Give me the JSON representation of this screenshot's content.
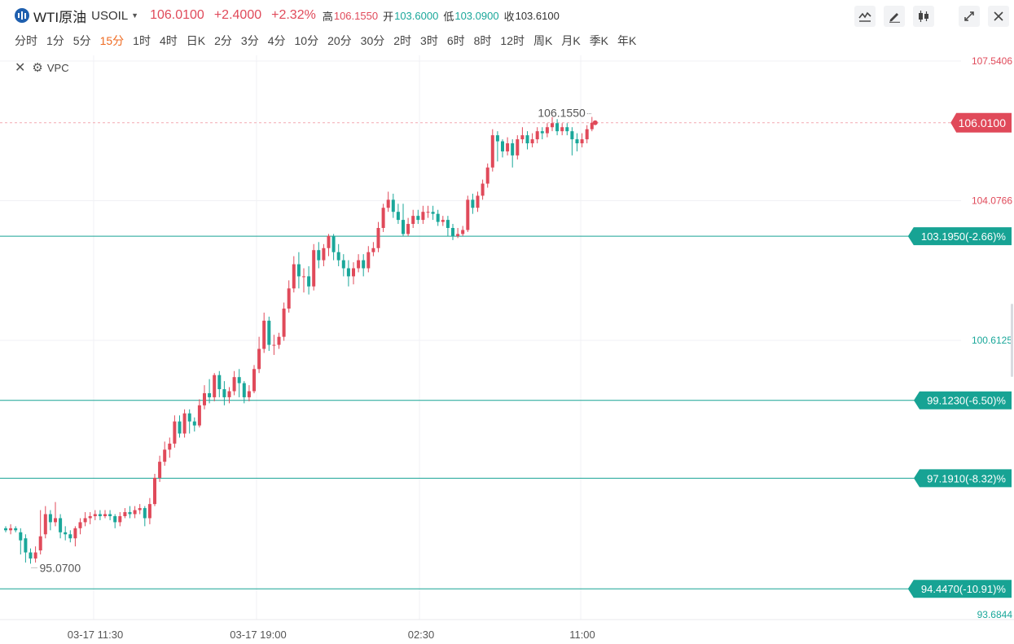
{
  "header": {
    "symbol_name": "WTI原油",
    "symbol_code": "USOIL",
    "price": "106.0100",
    "change": "+2.4000",
    "change_pct": "+2.32%",
    "high_label": "高",
    "high": "106.1550",
    "open_label": "开",
    "open": "103.6000",
    "low_label": "低",
    "low": "103.0900",
    "close_label": "收",
    "close": "103.6100"
  },
  "toolbar": {
    "icons": [
      "indicator-icon",
      "draw-icon",
      "candle-type-icon",
      "fullscreen-icon",
      "close-icon"
    ]
  },
  "periods": [
    "分时",
    "1分",
    "5分",
    "15分",
    "1时",
    "4时",
    "日K",
    "2分",
    "3分",
    "4分",
    "10分",
    "20分",
    "30分",
    "2时",
    "3时",
    "6时",
    "8时",
    "12时",
    "周K",
    "月K",
    "季K",
    "年K"
  ],
  "active_period": "15分",
  "indicator": {
    "label": "VPC"
  },
  "colors": {
    "up": "#e04a5a",
    "down": "#1aa79a",
    "accent": "#ef6a20",
    "level_line": "#17a394"
  },
  "chart_data": {
    "type": "candlestick",
    "y_axis_labels": [
      "107.5406",
      "104.0766",
      "100.6125",
      "93.6844"
    ],
    "ylim": [
      93.6844,
      107.5406
    ],
    "x_ticks": [
      "03-17 11:30",
      "03-17 19:00",
      "02:30",
      "11:00"
    ],
    "high_marker": "106.1550",
    "low_marker": "95.0700",
    "last_price": {
      "value": 106.01,
      "label": "106.0100"
    },
    "levels": [
      {
        "value": 103.195,
        "label": "103.1950(-2.66)%"
      },
      {
        "value": 99.123,
        "label": "99.1230(-6.50)%"
      },
      {
        "value": 97.191,
        "label": "97.1910(-8.32)%"
      },
      {
        "value": 94.447,
        "label": "94.4470(-10.91)%"
      }
    ],
    "candles": [
      [
        95.95,
        95.9,
        96.0,
        95.85
      ],
      [
        95.9,
        95.95,
        96.05,
        95.8
      ],
      [
        95.95,
        95.9,
        96.0,
        95.85
      ],
      [
        95.85,
        95.65,
        95.95,
        95.3
      ],
      [
        95.7,
        95.35,
        95.8,
        95.1
      ],
      [
        95.35,
        95.2,
        95.45,
        95.07
      ],
      [
        95.2,
        95.35,
        95.5,
        95.1
      ],
      [
        95.4,
        95.75,
        96.4,
        95.3
      ],
      [
        95.8,
        96.3,
        96.5,
        95.7
      ],
      [
        96.3,
        96.1,
        96.4,
        95.9
      ],
      [
        96.1,
        96.2,
        96.6,
        96.0
      ],
      [
        96.2,
        95.85,
        96.3,
        95.7
      ],
      [
        95.85,
        95.8,
        96.0,
        95.65
      ],
      [
        95.8,
        95.7,
        95.9,
        95.6
      ],
      [
        95.7,
        95.95,
        96.0,
        95.5
      ],
      [
        95.95,
        96.1,
        96.2,
        95.8
      ],
      [
        96.1,
        96.2,
        96.35,
        96.0
      ],
      [
        96.2,
        96.25,
        96.35,
        96.05
      ],
      [
        96.25,
        96.3,
        96.4,
        96.15
      ],
      [
        96.3,
        96.25,
        96.4,
        96.15
      ],
      [
        96.25,
        96.3,
        96.4,
        96.2
      ],
      [
        96.3,
        96.25,
        96.4,
        96.15
      ],
      [
        96.25,
        96.1,
        96.3,
        95.95
      ],
      [
        96.1,
        96.25,
        96.35,
        96.0
      ],
      [
        96.25,
        96.35,
        96.45,
        96.2
      ],
      [
        96.35,
        96.3,
        96.5,
        96.2
      ],
      [
        96.3,
        96.4,
        96.5,
        96.2
      ],
      [
        96.4,
        96.45,
        96.55,
        96.3
      ],
      [
        96.45,
        96.2,
        96.5,
        96.0
      ],
      [
        96.2,
        96.55,
        96.7,
        96.05
      ],
      [
        96.55,
        97.2,
        97.3,
        96.5
      ],
      [
        97.2,
        97.6,
        97.75,
        97.1
      ],
      [
        97.6,
        97.9,
        98.1,
        97.5
      ],
      [
        97.9,
        98.05,
        98.2,
        97.7
      ],
      [
        98.05,
        98.6,
        98.75,
        97.95
      ],
      [
        98.6,
        98.3,
        98.75,
        98.2
      ],
      [
        98.3,
        98.8,
        98.9,
        98.2
      ],
      [
        98.8,
        98.6,
        98.9,
        98.3
      ],
      [
        98.6,
        98.5,
        98.7,
        98.35
      ],
      [
        98.5,
        99.0,
        99.15,
        98.45
      ],
      [
        99.0,
        99.3,
        99.5,
        98.9
      ],
      [
        99.3,
        99.2,
        99.65,
        99.05
      ],
      [
        99.2,
        99.75,
        99.8,
        99.1
      ],
      [
        99.75,
        99.4,
        99.85,
        99.2
      ],
      [
        99.4,
        99.2,
        99.6,
        99.0
      ],
      [
        99.2,
        99.35,
        99.45,
        99.05
      ],
      [
        99.35,
        99.7,
        99.85,
        99.25
      ],
      [
        99.7,
        99.55,
        99.9,
        99.2
      ],
      [
        99.55,
        99.2,
        99.6,
        99.05
      ],
      [
        99.2,
        99.35,
        99.5,
        99.1
      ],
      [
        99.35,
        99.9,
        100.0,
        99.3
      ],
      [
        99.9,
        100.4,
        100.7,
        99.8
      ],
      [
        100.4,
        101.1,
        101.3,
        100.3
      ],
      [
        101.1,
        100.5,
        101.2,
        100.35
      ],
      [
        100.5,
        100.5,
        100.75,
        100.25
      ],
      [
        100.5,
        100.7,
        100.8,
        100.4
      ],
      [
        100.7,
        101.4,
        101.55,
        100.6
      ],
      [
        101.4,
        101.9,
        102.1,
        101.3
      ],
      [
        101.9,
        102.5,
        102.7,
        101.8
      ],
      [
        102.5,
        102.2,
        102.8,
        101.9
      ],
      [
        102.2,
        102.2,
        102.4,
        101.8
      ],
      [
        102.2,
        101.95,
        102.45,
        101.75
      ],
      [
        101.95,
        102.85,
        103.0,
        101.85
      ],
      [
        102.85,
        102.6,
        103.05,
        102.4
      ],
      [
        102.6,
        102.9,
        103.0,
        102.45
      ],
      [
        102.9,
        103.2,
        103.25,
        102.7
      ],
      [
        103.2,
        102.8,
        103.25,
        102.6
      ],
      [
        102.8,
        102.6,
        103.0,
        102.45
      ],
      [
        102.6,
        102.4,
        102.75,
        102.2
      ],
      [
        102.4,
        102.2,
        102.6,
        101.95
      ],
      [
        102.2,
        102.4,
        102.55,
        102.0
      ],
      [
        102.4,
        102.6,
        102.75,
        102.3
      ],
      [
        102.6,
        102.4,
        102.75,
        102.2
      ],
      [
        102.4,
        102.8,
        102.95,
        102.3
      ],
      [
        102.8,
        102.9,
        103.05,
        102.7
      ],
      [
        102.9,
        103.4,
        103.55,
        102.8
      ],
      [
        103.4,
        103.9,
        104.0,
        103.3
      ],
      [
        103.9,
        104.1,
        104.3,
        103.8
      ],
      [
        104.1,
        103.8,
        104.25,
        103.65
      ],
      [
        103.8,
        103.6,
        104.0,
        103.5
      ],
      [
        103.6,
        103.25,
        104.0,
        103.2
      ],
      [
        103.25,
        103.5,
        103.65,
        103.2
      ],
      [
        103.5,
        103.7,
        103.85,
        103.4
      ],
      [
        103.7,
        103.6,
        103.85,
        103.5
      ],
      [
        103.6,
        103.8,
        103.95,
        103.5
      ],
      [
        103.8,
        103.8,
        103.95,
        103.65
      ],
      [
        103.8,
        103.75,
        103.95,
        103.6
      ],
      [
        103.75,
        103.55,
        103.85,
        103.45
      ],
      [
        103.55,
        103.6,
        103.7,
        103.45
      ],
      [
        103.6,
        103.4,
        103.7,
        103.2
      ],
      [
        103.4,
        103.2,
        103.5,
        103.1
      ],
      [
        103.2,
        103.25,
        103.4,
        103.15
      ],
      [
        103.25,
        103.35,
        103.45,
        103.2
      ],
      [
        103.35,
        104.1,
        104.2,
        103.3
      ],
      [
        104.1,
        103.9,
        104.25,
        103.75
      ],
      [
        103.9,
        104.2,
        104.3,
        103.8
      ],
      [
        104.2,
        104.5,
        104.6,
        104.1
      ],
      [
        104.5,
        104.9,
        105.0,
        104.4
      ],
      [
        104.9,
        105.7,
        105.85,
        104.8
      ],
      [
        105.7,
        105.55,
        105.8,
        105.05
      ],
      [
        105.55,
        105.3,
        105.6,
        105.15
      ],
      [
        105.3,
        105.5,
        105.65,
        105.2
      ],
      [
        105.5,
        105.2,
        105.6,
        104.9
      ],
      [
        105.2,
        105.6,
        105.7,
        105.1
      ],
      [
        105.6,
        105.7,
        105.9,
        105.5
      ],
      [
        105.7,
        105.5,
        105.8,
        105.35
      ],
      [
        105.5,
        105.6,
        105.75,
        105.4
      ],
      [
        105.6,
        105.8,
        105.9,
        105.5
      ],
      [
        105.8,
        105.75,
        105.9,
        105.6
      ],
      [
        105.75,
        105.9,
        106.0,
        105.65
      ],
      [
        105.9,
        106.0,
        106.15,
        105.8
      ],
      [
        106.0,
        105.8,
        106.1,
        105.7
      ],
      [
        105.8,
        105.9,
        106.0,
        105.7
      ],
      [
        105.9,
        105.8,
        106.0,
        105.7
      ],
      [
        105.8,
        105.6,
        105.9,
        105.2
      ],
      [
        105.6,
        105.5,
        105.75,
        105.3
      ],
      [
        105.5,
        105.6,
        105.75,
        105.4
      ],
      [
        105.6,
        105.85,
        105.95,
        105.5
      ],
      [
        105.85,
        106.01,
        106.155,
        105.8
      ]
    ]
  }
}
